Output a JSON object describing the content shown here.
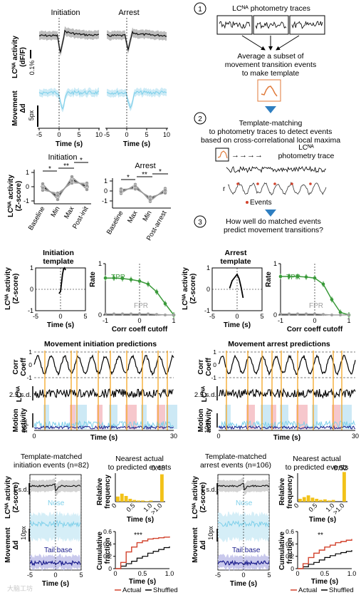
{
  "panel_a": {
    "initiation_title": "Initiation",
    "arrest_title": "Arrest",
    "ylabel_activity": "LCᴺᴬ activity",
    "ylabel_units": "(dF/F)",
    "scale_activity": "0.1%",
    "ylabel_movement": "Movement",
    "ylabel_movement_units": "Δd",
    "scale_movement": "5px",
    "x_ticks": [
      "-5",
      "0",
      "5",
      "10"
    ],
    "xlabel": "Time (s)"
  },
  "panel_b": {
    "initiation_title": "Initiation",
    "arrest_title": "Arrest",
    "ylabel": "LCᴺᴬ activity",
    "ylabel_units": "(Z-score)",
    "y_ticks": [
      "1",
      "0",
      "-1"
    ],
    "initiation_categories": [
      "Baseline",
      "Min",
      "Max",
      "Post-init"
    ],
    "arrest_categories": [
      "Baseline",
      "Max",
      "Min",
      "Post-arrest"
    ],
    "sig_initiation": [
      "*",
      "**",
      "*"
    ],
    "sig_arrest": [
      "*",
      "**",
      "*"
    ]
  },
  "schematic": {
    "step1_num": "1",
    "step1_title": "LCᴺᴬ photometry traces",
    "step1_text": [
      "Average a subset of",
      "movement transition events",
      "to make template"
    ],
    "step2_num": "2",
    "step2_text": [
      "Template-matching",
      "to photometry traces to detect events",
      "based on cross-correlational local maxima"
    ],
    "step2_trace_label": "LCᴺᴬ",
    "step2_trace_label2": "photometry trace",
    "r_label": "r",
    "events_label": "Events",
    "step3_num": "3",
    "step3_text": [
      "How well do matched events",
      "predict movement transitions?"
    ]
  },
  "templates": {
    "init_title": [
      "Initiation",
      "template"
    ],
    "arrest_title": [
      "Arrest",
      "template"
    ],
    "ylabel": "LCᴺᴬ activity",
    "ylabel_units": "(Z-score)",
    "y_ticks": [
      "1",
      "0",
      "-1"
    ],
    "x_ticks": [
      "-5",
      "0",
      "5"
    ],
    "xlabel": "Time (s)",
    "rate_ylabel": "Rate",
    "rate_y_ticks": [
      "1",
      "0"
    ],
    "rate_x_ticks": [
      "-1",
      "0",
      "1"
    ],
    "rate_xlabel": "Corr coeff cutoff",
    "tpr": "TPR",
    "fpr": "FPR"
  },
  "predictions": {
    "init_title": "Movement initiation predictions",
    "arrest_title": "Movement arrest predictions",
    "corr_label": [
      "Corr",
      "Coeff"
    ],
    "corr_ticks": [
      "1",
      "0",
      "-1"
    ],
    "lc_label": [
      "LCᴺᴬ"
    ],
    "sd_scale": "2.5 s.d.",
    "motion_label": [
      "Motion",
      "activity"
    ],
    "px_scale": "10px",
    "x_ticks": [
      "0",
      "30"
    ],
    "xlabel": "Time (s)"
  },
  "matched": {
    "init_title": [
      "Template-matched",
      "initiation events (n=82)"
    ],
    "arrest_title": [
      "Template-matched",
      "arrest events (n=106)"
    ],
    "sd_scale": "1 s.d.",
    "ylabel_lc": "LCᴺᴬ activity",
    "ylabel_lc_units": "(Z-score)",
    "nose": "Nose",
    "tail": "Tail base",
    "ylabel_mov": "Movement",
    "ylabel_mov_units": "Δd",
    "px_scale": "10px",
    "x_ticks": [
      "-5",
      "0",
      "5"
    ],
    "xlabel": "Time (s)",
    "nearest_title": [
      "Nearest actual",
      "to predicted events"
    ],
    "init_peak": "0.48",
    "arrest_peak": "0.52",
    "hist_ylabel": [
      "Relative",
      "frequency"
    ],
    "hist_x_ticks": [
      "0",
      "0.5",
      "1.0",
      ">1.0"
    ],
    "hist_xlabel": "Time (s)",
    "cum_ylabel": [
      "Cumulative",
      "fraction"
    ],
    "cum_y_ticks": [
      "0.6",
      "0.4",
      "0.2",
      "0"
    ],
    "cum_x_ticks": [
      "0",
      "0.5",
      "1.0"
    ],
    "cum_xlabel": "Time (s)",
    "init_sig": "***",
    "arrest_sig": "**",
    "legend_actual": "Actual",
    "legend_shuffled": "Shuffled"
  },
  "watermark": "大脑工坊",
  "colors": {
    "nose": "#7fd0ea",
    "tail": "#1b1d8c",
    "tpr": "#3a9a3a",
    "fpr": "#a0a0a0",
    "event_line": "#f5a623",
    "hist_bar": "#f2c218",
    "actual": "#d2422c",
    "template": "#e07a3a",
    "arrow": "#2f7fc1"
  },
  "chart_data": [
    {
      "type": "bar",
      "title": "Initiation",
      "categories": [
        "Baseline",
        "Min",
        "Max",
        "Post-init"
      ],
      "values": [
        0.0,
        -0.7,
        0.5,
        0.0
      ],
      "ylabel": "LCᴺᴬ activity (Z-score)",
      "ylim": [
        -1,
        1
      ]
    },
    {
      "type": "bar",
      "title": "Arrest",
      "categories": [
        "Baseline",
        "Max",
        "Min",
        "Post-arrest"
      ],
      "values": [
        0.0,
        0.4,
        -0.8,
        0.0
      ],
      "ylabel": "LCᴺᴬ activity (Z-score)",
      "ylim": [
        -1,
        1
      ]
    },
    {
      "type": "line",
      "title": "Initiation template",
      "x": [
        -0.3,
        0,
        0.2,
        0.4,
        0.6,
        0.8,
        1.0
      ],
      "y": [
        -0.2,
        -0.1,
        0.3,
        0.7,
        0.95,
        1.0,
        0.9
      ],
      "xlabel": "Time (s)",
      "ylabel": "LCᴺᴬ activity (Z-score)",
      "xlim": [
        -5,
        5
      ],
      "ylim": [
        -1,
        1
      ]
    },
    {
      "type": "line",
      "x": [
        -1,
        -0.75,
        -0.5,
        -0.25,
        0,
        0.25,
        0.5,
        0.75,
        1.0
      ],
      "series": [
        {
          "name": "TPR",
          "values": [
            0.72,
            0.72,
            0.71,
            0.69,
            0.66,
            0.6,
            0.45,
            0.22,
            0.0
          ]
        },
        {
          "name": "FPR",
          "values": [
            0.02,
            0.02,
            0.02,
            0.02,
            0.02,
            0.02,
            0.01,
            0.0,
            0.0
          ]
        }
      ],
      "xlabel": "Corr coeff cutoff",
      "ylabel": "Rate",
      "ylim": [
        0,
        1
      ]
    },
    {
      "type": "line",
      "title": "Arrest template",
      "x": [
        -1.5,
        -1.0,
        -0.5,
        0,
        0.4,
        0.8,
        1.2
      ],
      "y": [
        0.05,
        0.4,
        0.55,
        0.7,
        0.5,
        0.1,
        -0.4
      ],
      "xlabel": "Time (s)",
      "ylabel": "LCᴺᴬ activity (Z-score)",
      "xlim": [
        -5,
        5
      ],
      "ylim": [
        -1,
        1
      ]
    },
    {
      "type": "line",
      "x": [
        -1,
        -0.75,
        -0.5,
        -0.25,
        0,
        0.25,
        0.5,
        0.75,
        1.0
      ],
      "series": [
        {
          "name": "TPR",
          "values": [
            0.75,
            0.75,
            0.75,
            0.74,
            0.72,
            0.6,
            0.3,
            0.05,
            0.0
          ]
        },
        {
          "name": "FPR",
          "values": [
            0.02,
            0.02,
            0.02,
            0.02,
            0.02,
            0.01,
            0.0,
            0.0,
            0.0
          ]
        }
      ],
      "xlabel": "Corr coeff cutoff",
      "ylabel": "Rate",
      "ylim": [
        0,
        1
      ]
    },
    {
      "type": "bar",
      "title": "Nearest actual to predicted events (initiation)",
      "categories": [
        "0.1",
        "0.2",
        "0.3",
        "0.4",
        "0.5",
        "0.6",
        "0.7",
        "0.8",
        "0.9",
        "1.0",
        ">1.0"
      ],
      "values": [
        0.09,
        0.14,
        0.1,
        0.05,
        0.03,
        0.02,
        0.02,
        0.01,
        0.02,
        0.0,
        0.48
      ],
      "xlabel": "Time (s)",
      "ylabel": "Relative frequency"
    },
    {
      "type": "bar",
      "title": "Nearest actual to predicted events (arrest)",
      "categories": [
        "0.1",
        "0.2",
        "0.3",
        "0.4",
        "0.5",
        "0.6",
        "0.7",
        "0.8",
        "0.9",
        "1.0",
        ">1.0"
      ],
      "values": [
        0.05,
        0.08,
        0.11,
        0.07,
        0.05,
        0.03,
        0.04,
        0.02,
        0.03,
        0.0,
        0.52
      ],
      "xlabel": "Time (s)",
      "ylabel": "Relative frequency"
    },
    {
      "type": "line",
      "x": [
        0,
        0.1,
        0.2,
        0.3,
        0.4,
        0.5,
        0.6,
        0.7,
        0.8,
        0.9,
        1.0
      ],
      "series": [
        {
          "name": "Actual",
          "values": [
            0,
            0.1,
            0.27,
            0.35,
            0.42,
            0.45,
            0.48,
            0.49,
            0.5,
            0.51,
            0.52
          ]
        },
        {
          "name": "Shuffled",
          "values": [
            0,
            0.04,
            0.08,
            0.12,
            0.17,
            0.2,
            0.25,
            0.28,
            0.31,
            0.34,
            0.36
          ]
        }
      ],
      "xlabel": "Time (s)",
      "ylabel": "Cumulative fraction",
      "ylim": [
        0,
        0.6
      ]
    },
    {
      "type": "line",
      "x": [
        0,
        0.1,
        0.2,
        0.3,
        0.4,
        0.5,
        0.6,
        0.7,
        0.8,
        0.9,
        1.0
      ],
      "series": [
        {
          "name": "Actual",
          "values": [
            0,
            0.08,
            0.18,
            0.25,
            0.3,
            0.35,
            0.38,
            0.42,
            0.44,
            0.46,
            0.48
          ]
        },
        {
          "name": "Shuffled",
          "values": [
            0,
            0.03,
            0.07,
            0.1,
            0.14,
            0.18,
            0.21,
            0.24,
            0.26,
            0.28,
            0.3
          ]
        }
      ],
      "xlabel": "Time (s)",
      "ylabel": "Cumulative fraction",
      "ylim": [
        0,
        0.6
      ]
    }
  ]
}
